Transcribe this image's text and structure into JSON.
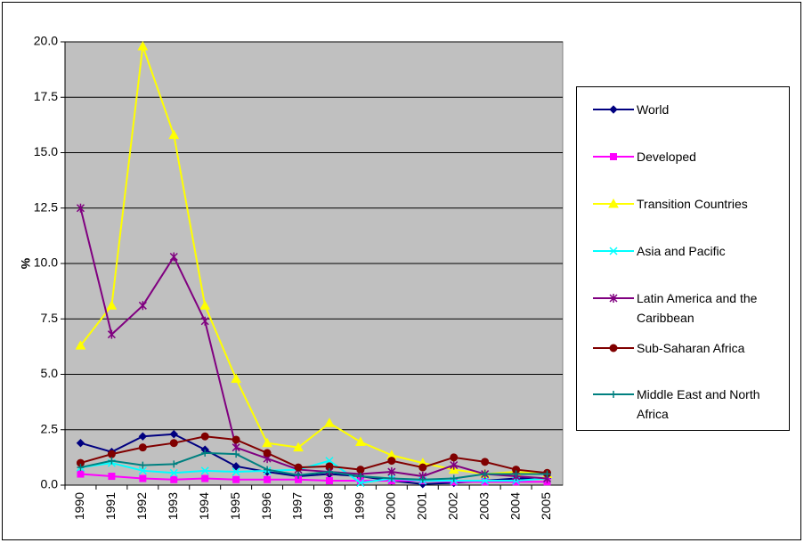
{
  "chart_data": {
    "type": "line",
    "y_label": "%",
    "categories": [
      "1990",
      "1991",
      "1992",
      "1993",
      "1994",
      "1995",
      "1996",
      "1997",
      "1998",
      "1999",
      "2000",
      "2001",
      "2002",
      "2003",
      "2004",
      "2005"
    ],
    "ylim": [
      0,
      20
    ],
    "yticks": [
      {
        "value": 0,
        "label": "0.0"
      },
      2.5,
      {
        "value": 5,
        "label": "5.0"
      },
      7.5,
      {
        "value": 10,
        "label": "10.0"
      },
      12.5,
      {
        "value": 15,
        "label": "15.0"
      },
      17.5,
      {
        "value": 20,
        "label": "20.0"
      }
    ],
    "grid": true,
    "plot_background": "#c0c0c0",
    "legend": "right",
    "series": [
      {
        "name": "World",
        "color": "#000080",
        "marker": "diamond",
        "values": [
          1.9,
          1.5,
          2.2,
          2.3,
          1.6,
          0.85,
          0.6,
          0.4,
          0.5,
          0.4,
          0.2,
          0.05,
          0.1,
          0.2,
          0.3,
          0.3
        ]
      },
      {
        "name": "Developed",
        "color": "#ff00ff",
        "marker": "square",
        "values": [
          0.5,
          0.4,
          0.3,
          0.25,
          0.3,
          0.25,
          0.25,
          0.25,
          0.2,
          0.2,
          0.2,
          0.2,
          0.15,
          0.15,
          0.15,
          0.15
        ]
      },
      {
        "name": "Transition Countries",
        "color": "#ffff00",
        "marker": "triangle",
        "values": [
          6.3,
          8.1,
          19.8,
          15.8,
          8.1,
          4.8,
          1.9,
          1.7,
          2.8,
          1.95,
          1.35,
          1.0,
          0.7,
          0.5,
          0.6,
          0.5
        ]
      },
      {
        "name": "Asia and Pacific",
        "color": "#00ffff",
        "marker": "x",
        "values": [
          0.8,
          1.0,
          0.65,
          0.55,
          0.65,
          0.6,
          0.65,
          0.7,
          1.1,
          0.1,
          0.3,
          0.2,
          0.2,
          0.2,
          0.2,
          0.3
        ]
      },
      {
        "name": "Latin America and the Caribbean",
        "color": "#800080",
        "marker": "star",
        "values": [
          12.5,
          6.8,
          8.1,
          10.3,
          7.4,
          1.7,
          1.2,
          0.7,
          0.6,
          0.5,
          0.6,
          0.4,
          0.9,
          0.5,
          0.4,
          0.3
        ]
      },
      {
        "name": "Sub-Saharan Africa",
        "color": "#800000",
        "marker": "circle",
        "values": [
          1.0,
          1.4,
          1.7,
          1.9,
          2.2,
          2.05,
          1.45,
          0.8,
          0.85,
          0.7,
          1.1,
          0.8,
          1.25,
          1.05,
          0.7,
          0.55
        ]
      },
      {
        "name": "Middle East and North Africa",
        "color": "#008080",
        "marker": "plus",
        "values": [
          0.8,
          1.1,
          0.9,
          0.95,
          1.45,
          1.4,
          0.7,
          0.45,
          0.6,
          0.4,
          0.3,
          0.25,
          0.3,
          0.5,
          0.5,
          0.5
        ]
      }
    ]
  }
}
